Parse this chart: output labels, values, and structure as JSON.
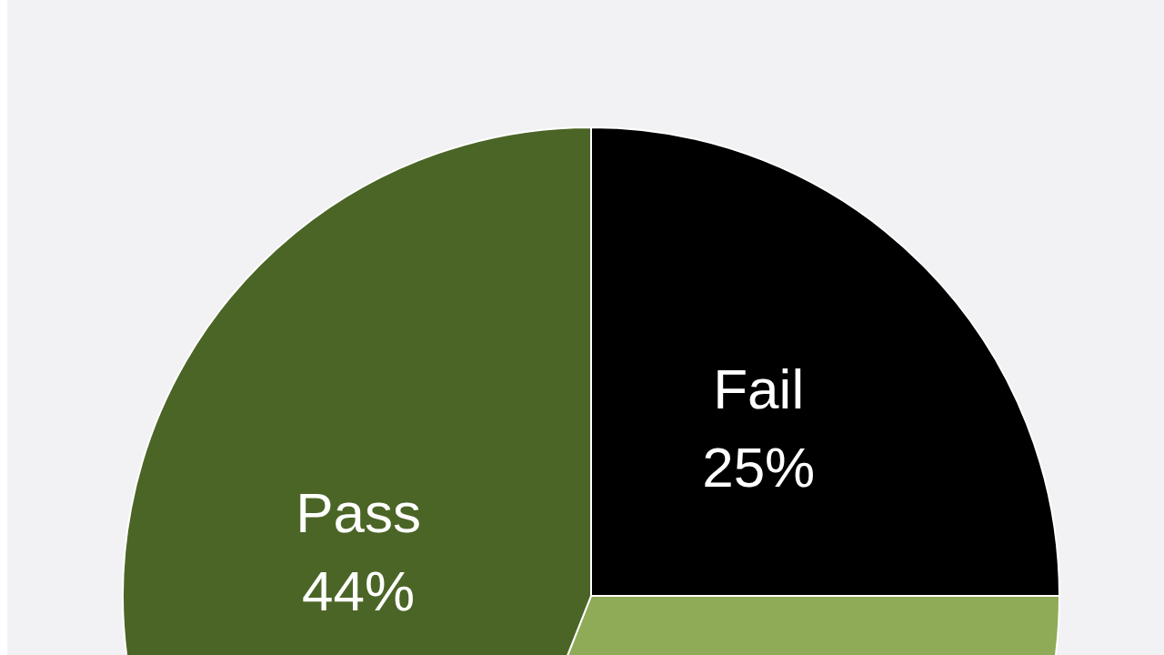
{
  "chart_data": {
    "type": "pie",
    "categories": [
      "Fail",
      null,
      "Pass"
    ],
    "values": [
      25,
      31,
      44
    ],
    "value_labels": [
      "25%",
      null,
      "44%"
    ],
    "colors": [
      "#000000",
      "#8fab57",
      "#4b6526"
    ]
  }
}
